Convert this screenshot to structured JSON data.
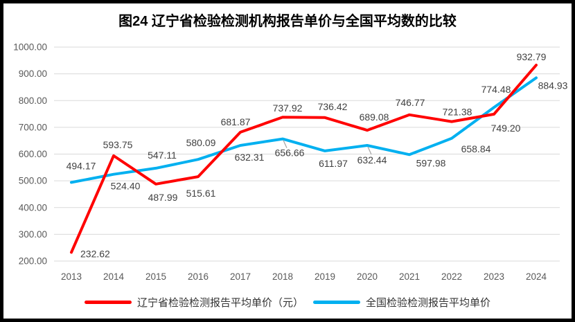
{
  "chart_data": {
    "type": "line",
    "title": "图24 辽宁省检验检测机构报告单价与全国平均数的比较",
    "categories": [
      "2013",
      "2014",
      "2015",
      "2016",
      "2017",
      "2018",
      "2019",
      "2020",
      "2021",
      "2022",
      "2023",
      "2024"
    ],
    "series": [
      {
        "name": "辽宁省检验检测报告平均单价（元）",
        "color": "#FF0000",
        "values": [
          232.62,
          593.75,
          487.99,
          515.61,
          681.87,
          737.92,
          736.42,
          689.08,
          746.77,
          721.38,
          749.2,
          932.79
        ],
        "label_offsets": [
          [
            13,
            7,
            "start"
          ],
          [
            6,
            -11,
            "middle"
          ],
          [
            10,
            24,
            "middle"
          ],
          [
            4,
            29,
            "middle"
          ],
          [
            -7,
            -10,
            "middle"
          ],
          [
            7,
            -8,
            "middle"
          ],
          [
            11,
            -11,
            "middle"
          ],
          [
            10,
            -14,
            "middle"
          ],
          [
            1,
            -13,
            "middle"
          ],
          [
            8,
            -9,
            "middle"
          ],
          [
            17,
            25,
            "middle"
          ],
          [
            -7,
            -7,
            "middle"
          ]
        ],
        "leader_line_indices": []
      },
      {
        "name": "全国检验检测报告平均单价",
        "color": "#00B0F0",
        "values": [
          494.17,
          524.4,
          547.11,
          580.09,
          632.31,
          656.66,
          611.97,
          632.44,
          597.98,
          658.84,
          774.48,
          884.93
        ],
        "label_offsets": [
          [
            14,
            -19,
            "middle"
          ],
          [
            17,
            22,
            "middle"
          ],
          [
            9,
            -14,
            "middle"
          ],
          [
            4,
            -19,
            "middle"
          ],
          [
            13,
            22,
            "middle"
          ],
          [
            10,
            25,
            "middle"
          ],
          [
            12,
            23,
            "middle"
          ],
          [
            7,
            26,
            "middle"
          ],
          [
            31,
            17,
            "middle"
          ],
          [
            35,
            20,
            "middle"
          ],
          [
            3,
            -21,
            "middle"
          ],
          [
            24,
            16,
            "middle"
          ]
        ],
        "leader_line_indices": [
          5,
          7
        ]
      }
    ],
    "ylim": [
      200,
      1000
    ],
    "ytick_step": 100,
    "ytick_decimals": 2,
    "data_label_decimals": 2,
    "grid": "horizontal",
    "gridline_color": "#D9D9D9",
    "tick_label_color": "#595959",
    "data_label_color": "#404040",
    "leader_line_color": "#A6A6A6",
    "legend_position": "bottom"
  }
}
